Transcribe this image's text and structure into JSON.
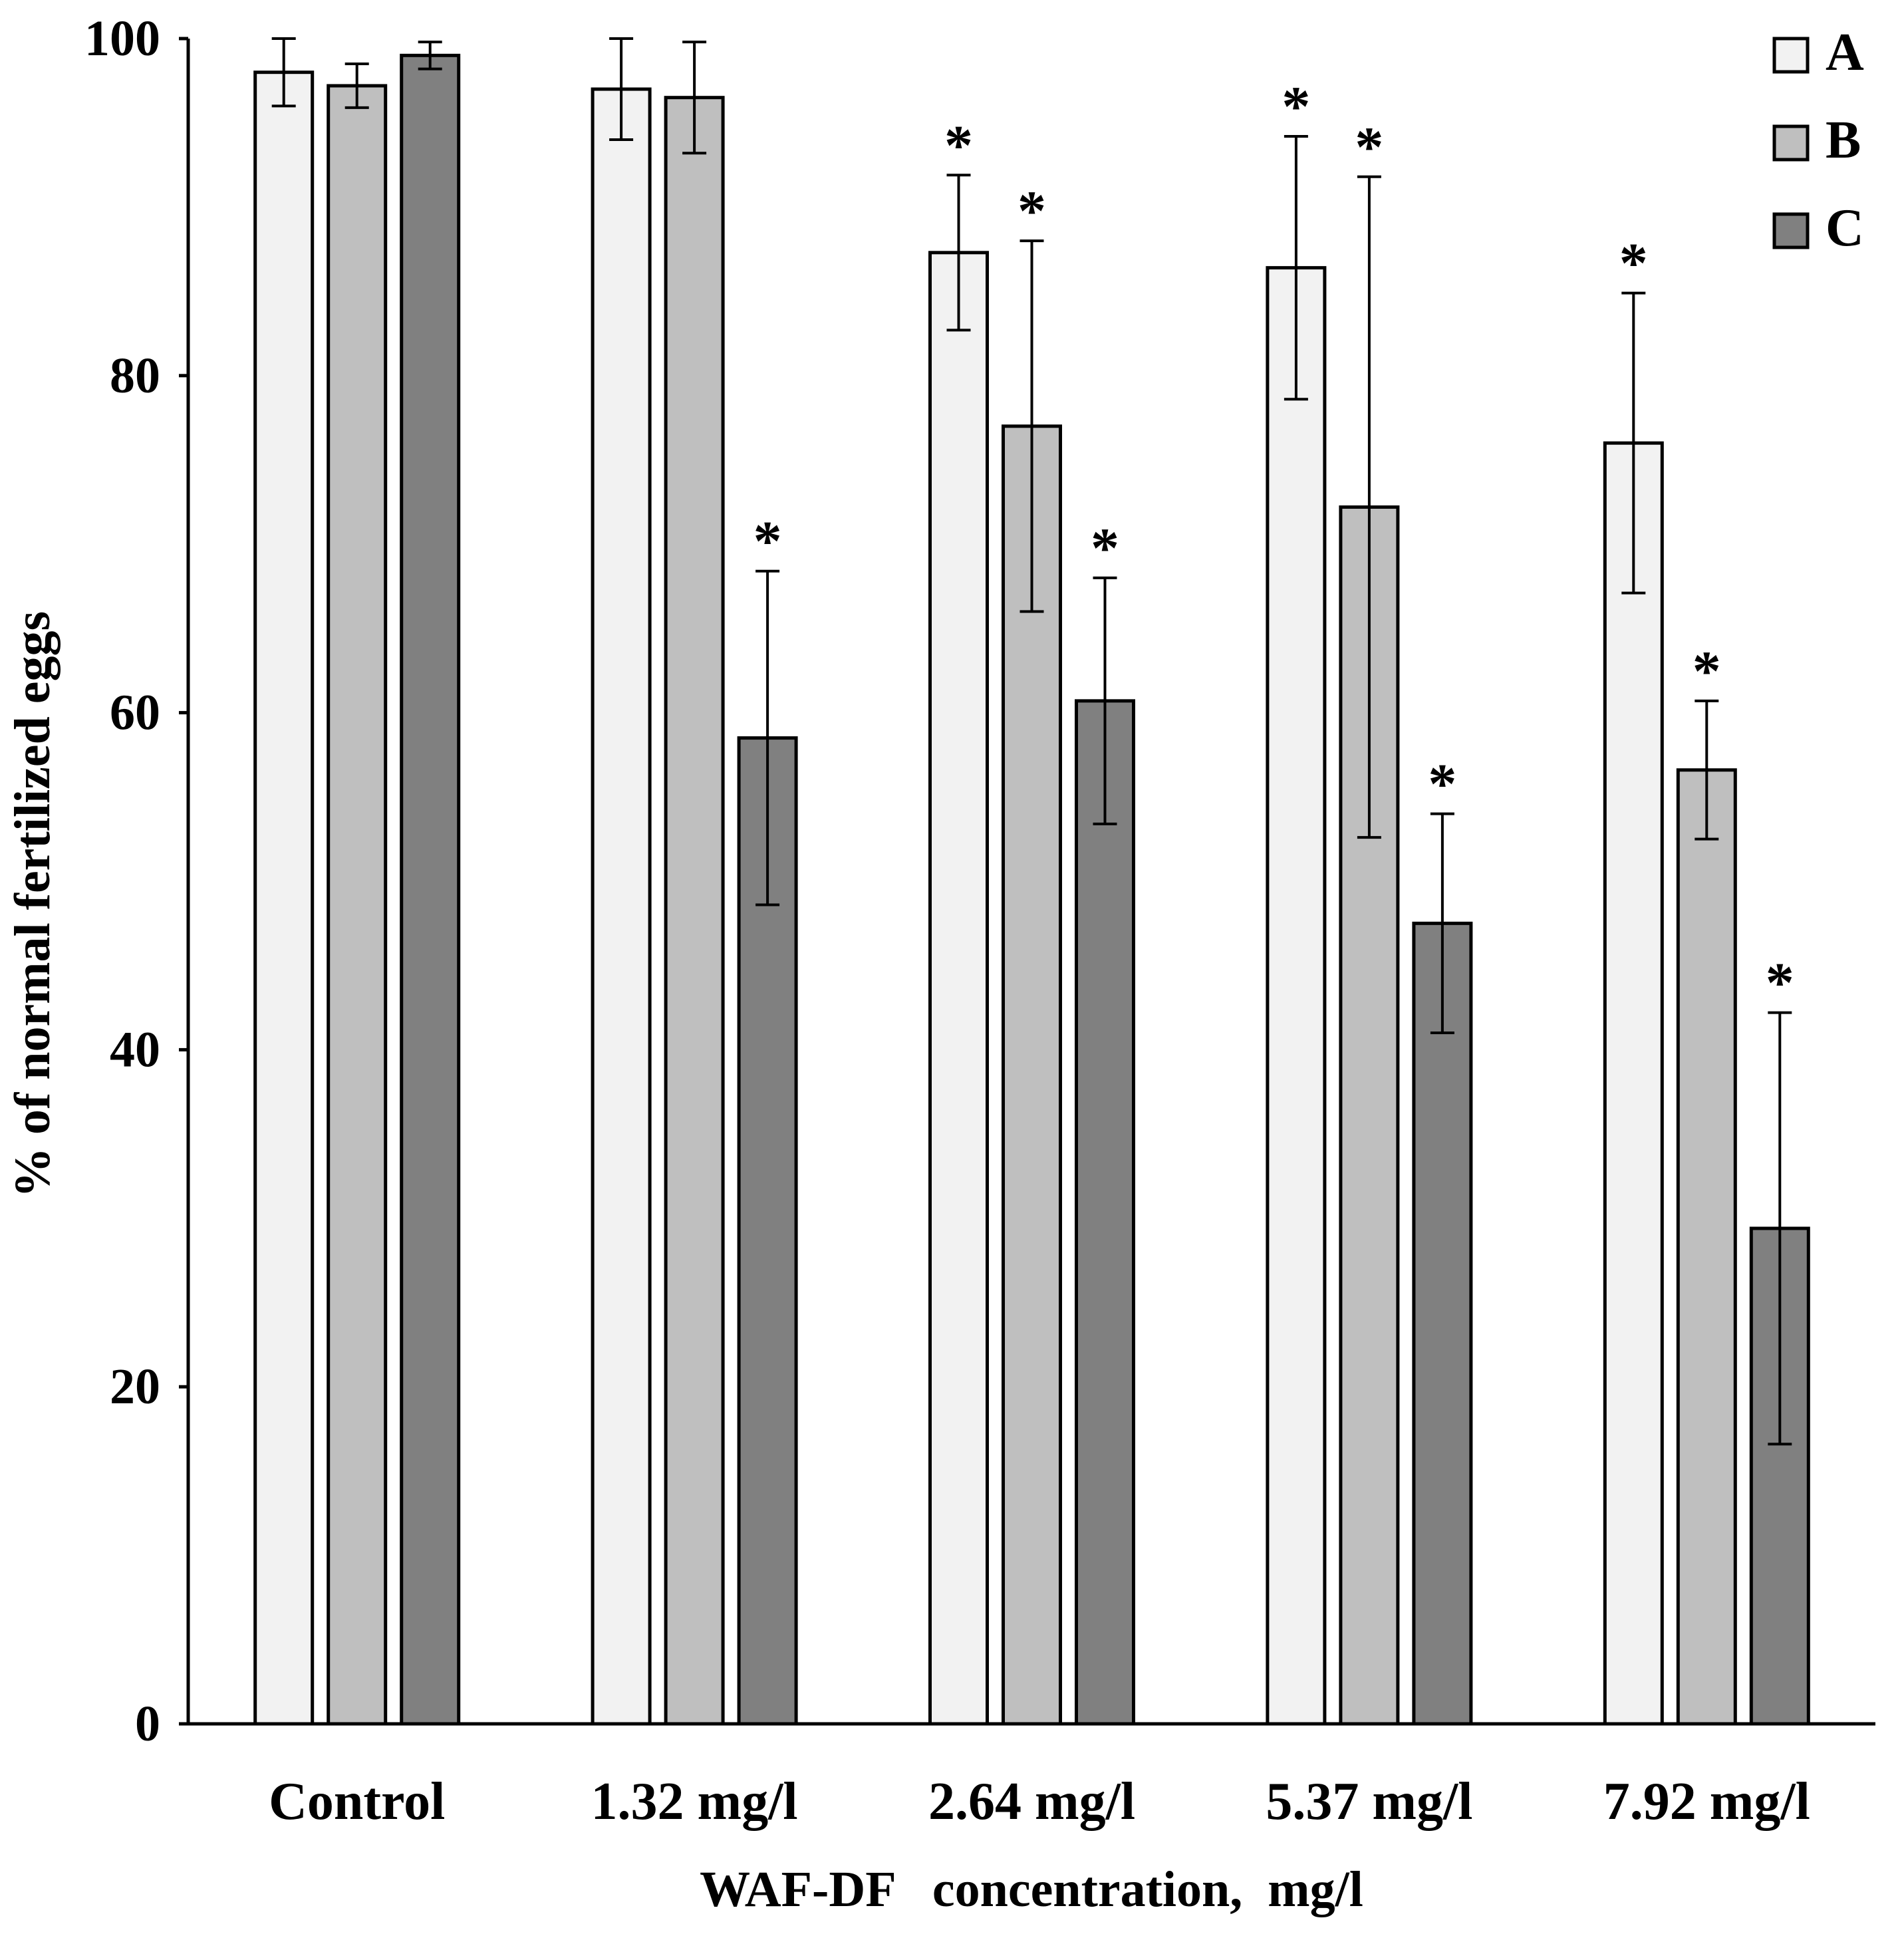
{
  "chart_data": {
    "type": "bar",
    "title": "",
    "xlabel": "WAF-DF   concentration,  mg/l",
    "ylabel": "% of normal  fertilized  eggs",
    "ylim": [
      0,
      100
    ],
    "yticks": [
      "0",
      "20",
      "40",
      "60",
      "80",
      "100"
    ],
    "categories": [
      "Control",
      "1.32 mg/l",
      "2.64 mg/l",
      "5.37 mg/l",
      "7.92 mg/l"
    ],
    "significance_marker": "*",
    "legend_position": "top-right",
    "series": [
      {
        "name": "A",
        "color": "#f2f2f2",
        "values": [
          98.0,
          97.0,
          87.3,
          86.4,
          76.0
        ],
        "errors": [
          2.0,
          3.0,
          4.6,
          7.8,
          8.9
        ],
        "significant": [
          false,
          false,
          true,
          true,
          true
        ]
      },
      {
        "name": "B",
        "color": "#bfbfbf",
        "values": [
          97.2,
          96.5,
          77.0,
          72.2,
          56.6
        ],
        "errors": [
          1.3,
          3.3,
          11.0,
          19.6,
          4.1
        ],
        "significant": [
          false,
          false,
          true,
          true,
          true
        ]
      },
      {
        "name": "C",
        "color": "#808080",
        "values": [
          99.0,
          58.5,
          60.7,
          47.5,
          29.4
        ],
        "errors": [
          0.8,
          9.9,
          7.3,
          6.5,
          12.8
        ],
        "significant": [
          false,
          true,
          true,
          true,
          true
        ]
      }
    ]
  }
}
